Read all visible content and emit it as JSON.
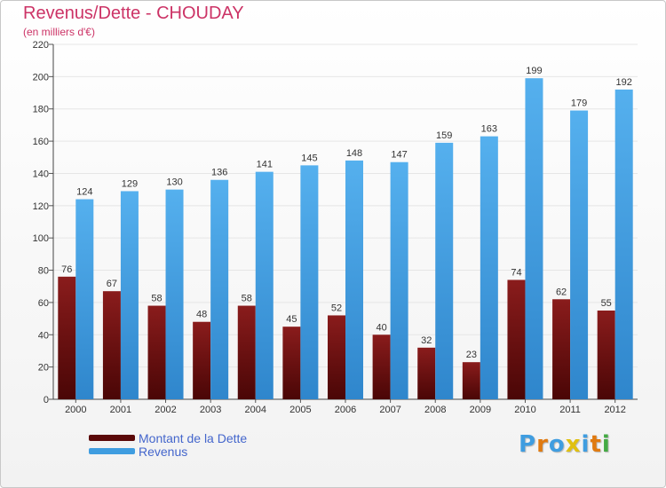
{
  "header": {
    "title": "Revenus/Dette - CHOUDAY",
    "subtitle": "(en milliers d'€)"
  },
  "chart_data": {
    "type": "bar",
    "categories": [
      "2000",
      "2001",
      "2002",
      "2003",
      "2004",
      "2005",
      "2006",
      "2007",
      "2008",
      "2009",
      "2010",
      "2011",
      "2012"
    ],
    "series": [
      {
        "name": "Montant de la Dette",
        "color": "#7a1010",
        "values": [
          76,
          67,
          58,
          48,
          58,
          45,
          52,
          40,
          32,
          23,
          74,
          62,
          55
        ]
      },
      {
        "name": "Revenus",
        "color": "#3f9de0",
        "values": [
          124,
          129,
          130,
          136,
          141,
          145,
          148,
          147,
          159,
          163,
          199,
          179,
          192
        ]
      }
    ],
    "title": "Revenus/Dette - CHOUDAY",
    "ylabel": "(en milliers d'€)",
    "ylim": [
      0,
      220
    ],
    "yticks": [
      0,
      20,
      40,
      60,
      80,
      100,
      120,
      140,
      160,
      180,
      200,
      220
    ],
    "grid": true,
    "legend_position": "bottom-left",
    "data_labels": true
  },
  "legend": {
    "items": [
      {
        "label": "Montant de la Dette",
        "color": "#5a0808"
      },
      {
        "label": "Revenus",
        "color": "#3f9de0"
      }
    ]
  },
  "logo": {
    "letters": [
      "P",
      "r",
      "o",
      "x",
      "i",
      "t",
      "i"
    ],
    "colors": [
      "#3f9de0",
      "#e07a10",
      "#3f9de0",
      "#e0c010",
      "#3f9de0",
      "#e07a10",
      "#44aa44"
    ]
  }
}
